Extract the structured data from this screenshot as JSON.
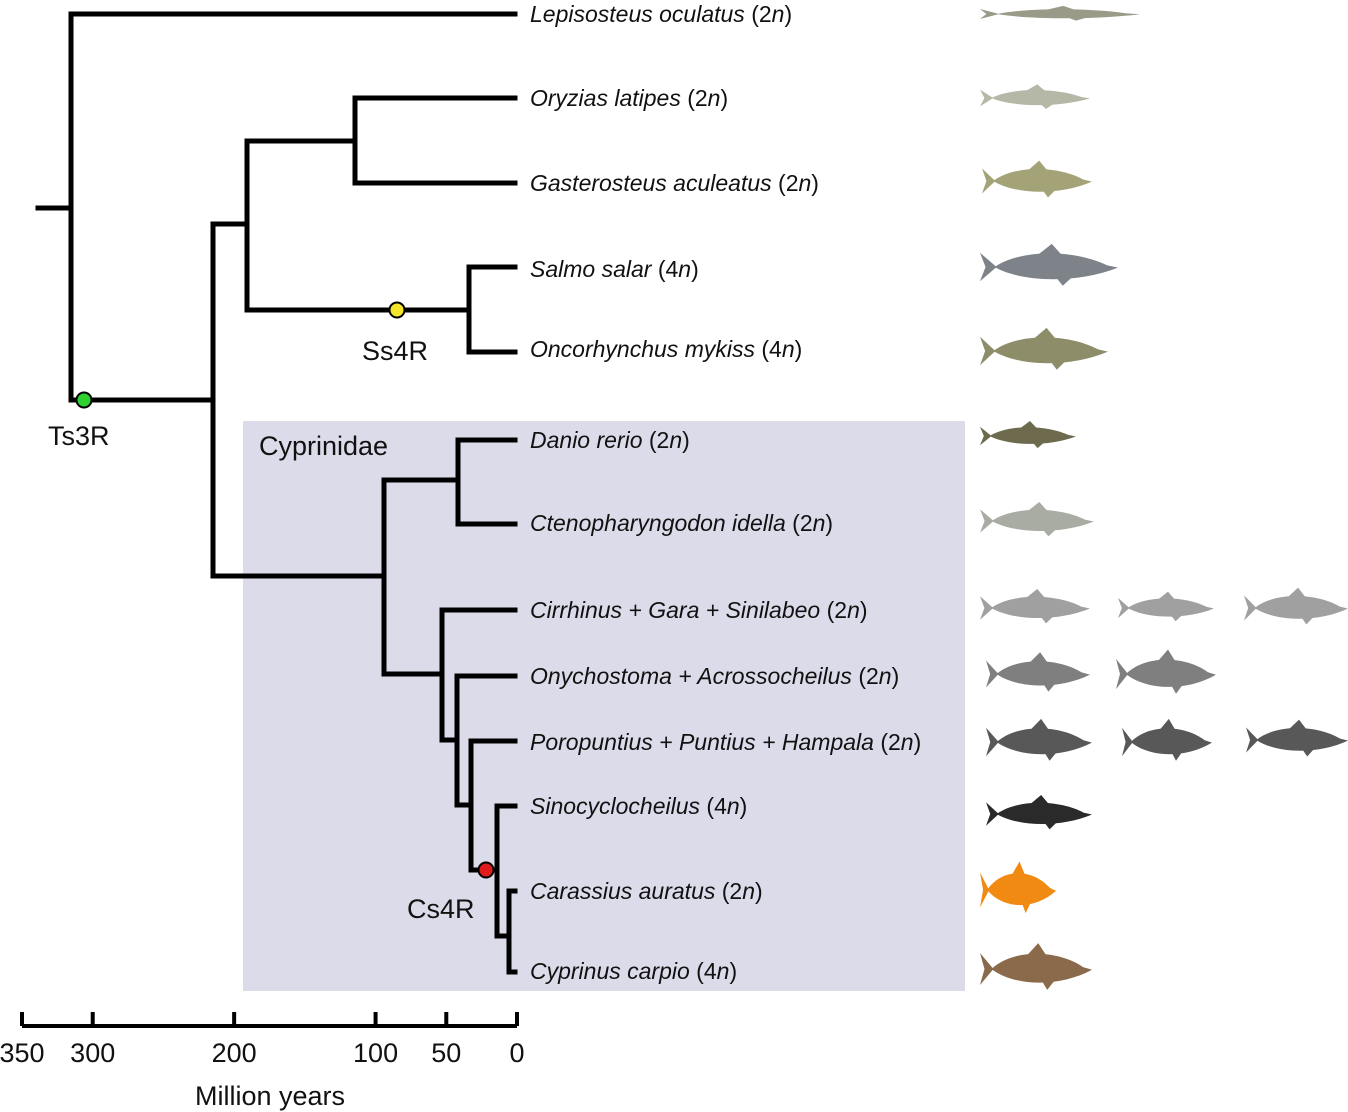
{
  "clade": {
    "label": "Cyprinidae",
    "fill": "#dcdbe9"
  },
  "events": [
    {
      "label": "Ts3R",
      "color": "#2fd12f"
    },
    {
      "label": "Ss4R",
      "color": "#f5e62a"
    },
    {
      "label": "Cs4R",
      "color": "#e01b1b"
    }
  ],
  "taxa": [
    {
      "name": "Lepisosteus oculatus",
      "ploidy_pre": " (2",
      "ploidy_n": "n",
      "ploidy_post": ")",
      "icon": "spotted-gar-icon",
      "color": "#9a9a88"
    },
    {
      "name": "Oryzias latipes",
      "ploidy_pre": " (2",
      "ploidy_n": "n",
      "ploidy_post": ")",
      "icon": "medaka-icon",
      "color": "#b5b8a6"
    },
    {
      "name": "Gasterosteus aculeatus",
      "ploidy_pre": " (2",
      "ploidy_n": "n",
      "ploidy_post": ")",
      "icon": "stickleback-icon",
      "color": "#a3a377"
    },
    {
      "name": "Salmo salar",
      "ploidy_pre": " (4",
      "ploidy_n": "n",
      "ploidy_post": ")",
      "icon": "atlantic-salmon-icon",
      "color": "#7d8389"
    },
    {
      "name": "Oncorhynchus mykiss",
      "ploidy_pre": " (4",
      "ploidy_n": "n",
      "ploidy_post": ")",
      "icon": "rainbow-trout-icon",
      "color": "#8e8d6a"
    },
    {
      "name": "Danio rerio",
      "ploidy_pre": " (2",
      "ploidy_n": "n",
      "ploidy_post": ")",
      "icon": "zebrafish-icon",
      "color": "#6d6a4e"
    },
    {
      "name": "Ctenopharyngodon idella",
      "ploidy_pre": " (2",
      "ploidy_n": "n",
      "ploidy_post": ")",
      "icon": "grass-carp-icon",
      "color": "#a9aca3"
    },
    {
      "name": "Cirrhinus + Gara + Sinilabeo",
      "ploidy_pre": " (2",
      "ploidy_n": "n",
      "ploidy_post": ")",
      "icon": "fish-silhouette-icon",
      "color": "#a0a0a0"
    },
    {
      "name": "Onychostoma + Acrossocheilus",
      "ploidy_pre": " (2",
      "ploidy_n": "n",
      "ploidy_post": ")",
      "icon": "fish-silhouette-icon",
      "color": "#7f7f7f"
    },
    {
      "name": "Poropuntius + Puntius + Hampala",
      "ploidy_pre": " (2",
      "ploidy_n": "n",
      "ploidy_post": ")",
      "icon": "fish-silhouette-icon",
      "color": "#585858"
    },
    {
      "name": "Sinocyclocheilus",
      "ploidy_pre": " (4",
      "ploidy_n": "n",
      "ploidy_post": ")",
      "icon": "cavefish-silhouette-icon",
      "color": "#2a2a2a"
    },
    {
      "name": "Carassius auratus",
      "ploidy_pre": " (2",
      "ploidy_n": "n",
      "ploidy_post": ")",
      "icon": "goldfish-icon",
      "color": "#f08a12"
    },
    {
      "name": "Cyprinus carpio",
      "ploidy_pre": " (4",
      "ploidy_n": "n",
      "ploidy_post": ")",
      "icon": "common-carp-icon",
      "color": "#8a6a4a"
    }
  ],
  "axis": {
    "title": "Million years",
    "ticks": [
      {
        "value": 350,
        "label": "350"
      },
      {
        "value": 300,
        "label": "300"
      },
      {
        "value": 200,
        "label": "200"
      },
      {
        "value": 100,
        "label": "100"
      },
      {
        "value": 50,
        "label": "50"
      },
      {
        "value": 0,
        "label": "0"
      }
    ]
  }
}
